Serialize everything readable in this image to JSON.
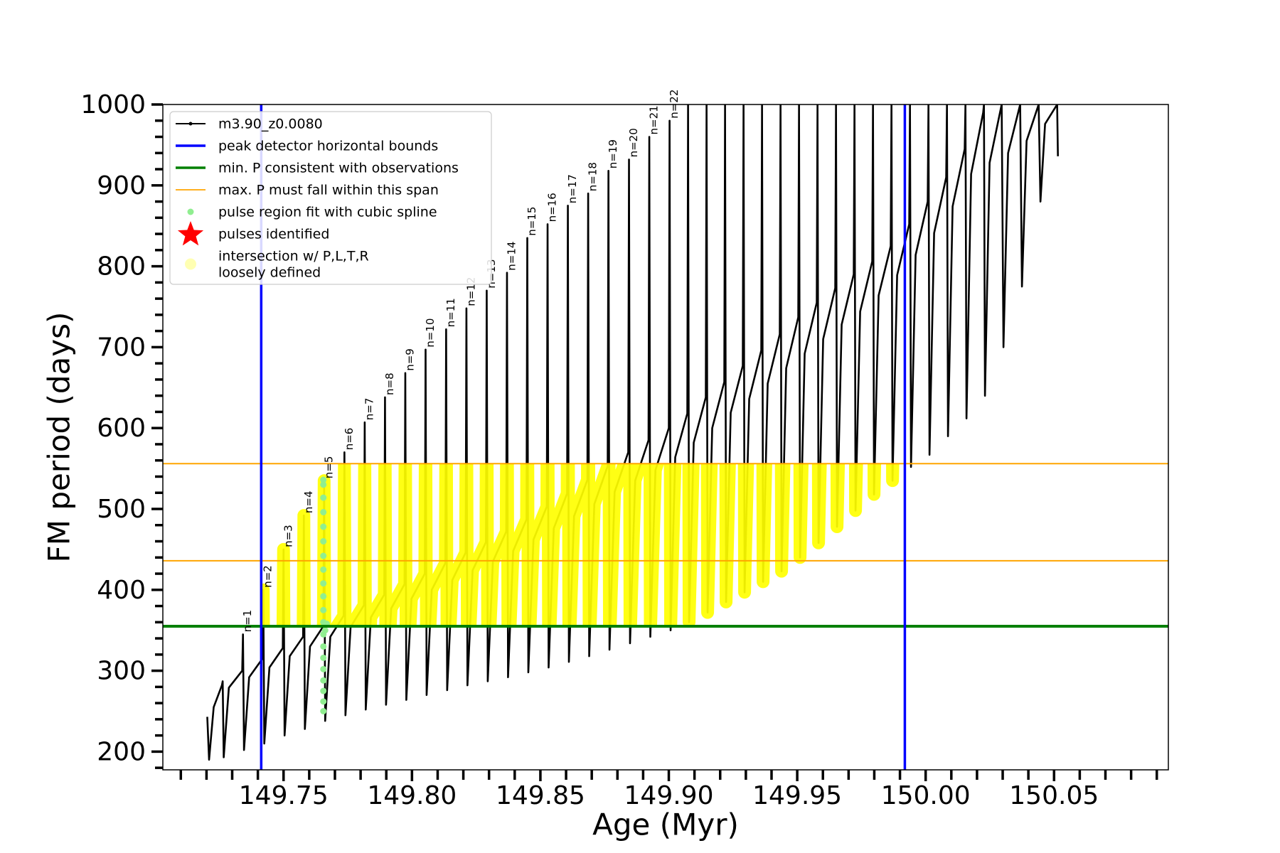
{
  "chart_data": {
    "type": "line",
    "xlabel": "Age (Myr)",
    "ylabel": "FM period (days)",
    "xlim": [
      149.703,
      150.0945
    ],
    "ylim": [
      177.5,
      1000
    ],
    "xticks": [
      149.75,
      {
        "value": 149.8,
        "label": "149.80"
      },
      149.85,
      {
        "value": 149.9,
        "label": "149.90"
      },
      149.95,
      {
        "value": 150,
        "label": "150.00"
      },
      150.05
    ],
    "xminorticks": [
      149.71,
      149.72,
      149.73,
      149.74,
      149.76,
      149.77,
      149.78,
      149.79,
      149.81,
      149.82,
      149.83,
      149.84,
      149.86,
      149.87,
      149.88,
      149.89,
      149.91,
      149.92,
      149.93,
      149.94,
      149.96,
      149.97,
      149.98,
      149.99,
      150.01,
      150.02,
      150.03,
      150.04,
      150.06,
      150.07,
      150.08,
      150.09
    ],
    "yticks": [
      200,
      300,
      400,
      500,
      600,
      700,
      800,
      900,
      1000
    ],
    "yminorticks": [
      180,
      220,
      240,
      260,
      280,
      320,
      340,
      360,
      380,
      420,
      440,
      460,
      480,
      520,
      540,
      560,
      580,
      620,
      640,
      660,
      680,
      720,
      740,
      760,
      780,
      820,
      840,
      860,
      880,
      920,
      940,
      960,
      980
    ],
    "grid": false,
    "legend": "upper left",
    "series": [
      {
        "name": "m3.90_z0.0080",
        "color": "#000000",
        "x": [
          149.7203,
          149.721,
          149.7228,
          149.726,
          149.7263,
          149.7267,
          149.7287,
          149.7339,
          149.7342,
          149.7346,
          149.7366,
          149.7418,
          149.7421,
          149.7425,
          149.7445,
          149.7497,
          149.75,
          149.7504,
          149.7524,
          149.7576,
          149.7579,
          149.7583,
          149.7603,
          149.7655,
          149.7658,
          149.7662,
          149.7682,
          149.7734,
          149.7737,
          149.7741,
          149.7761,
          149.7813,
          149.7816,
          149.782,
          149.784,
          149.7892,
          149.7895,
          149.7899,
          149.7919,
          149.7971,
          149.7974,
          149.7978,
          149.7998,
          149.805,
          149.8053,
          149.8057,
          149.8077,
          149.813,
          149.8133,
          149.8137,
          149.8157,
          149.8209,
          149.8212,
          149.8216,
          149.8236,
          149.8288,
          149.8291,
          149.8295,
          149.8315,
          149.8367,
          149.837,
          149.8374,
          149.8394,
          149.8446,
          149.8449,
          149.8453,
          149.8473,
          149.8525,
          149.8528,
          149.8532,
          149.8552,
          149.8604,
          149.8607,
          149.8611,
          149.8631,
          149.8683,
          149.8686,
          149.869,
          149.871,
          149.8762,
          149.8765,
          149.8769,
          149.8789,
          149.8842,
          149.8845,
          149.8849,
          149.8869,
          149.8921,
          149.8924,
          149.8928,
          149.8948,
          149.9,
          149.9003,
          149.9007,
          149.9025,
          149.9072,
          149.9075,
          149.9079,
          149.9097,
          149.9144,
          149.9147,
          149.9151,
          149.9169,
          149.9216,
          149.9219,
          149.9223,
          149.9241,
          149.9288,
          149.9291,
          149.9295,
          149.9313,
          149.936,
          149.9363,
          149.9367,
          149.9385,
          149.9432,
          149.9435,
          149.9439,
          149.9457,
          149.9504,
          149.9507,
          149.9511,
          149.9529,
          149.9576,
          149.9579,
          149.9583,
          149.9601,
          149.9648,
          149.9651,
          149.9655,
          149.9673,
          149.972,
          149.9723,
          149.9727,
          149.9745,
          149.9792,
          149.9795,
          149.9799,
          149.9817,
          149.9864,
          149.9867,
          149.9871,
          149.9889,
          149.9936,
          149.9939,
          149.9943,
          149.9961,
          150.0008,
          150.0011,
          150.0015,
          150.0033,
          150.008,
          150.0083,
          150.0087,
          150.0105,
          150.0152,
          150.0155,
          150.0159,
          150.0177,
          150.0224,
          150.0227,
          150.0231,
          150.0249,
          150.0296,
          150.0303,
          150.0321,
          150.0368,
          150.0375,
          150.0393,
          150.044,
          150.0447,
          150.0465,
          150.0512,
          150.0515
        ],
        "values": [
          243,
          190,
          255,
          282,
          287,
          193,
          279,
          300,
          345,
          202,
          292,
          315,
          400,
          210,
          304,
          328,
          450,
          220,
          318,
          342,
          492,
          228,
          330,
          355,
          535,
          238,
          342,
          368,
          570,
          245,
          354,
          381,
          607,
          252,
          366,
          394,
          638,
          258,
          377,
          407,
          668,
          264,
          389,
          420,
          697,
          270,
          400,
          433,
          722,
          276,
          412,
          446,
          748,
          282,
          424,
          459,
          770,
          287,
          435,
          472,
          792,
          292,
          448,
          487,
          835,
          298,
          462,
          503,
          852,
          304,
          476,
          519,
          875,
          311,
          491,
          536,
          890,
          318,
          506,
          553,
          918,
          326,
          521,
          570,
          932,
          334,
          535,
          585,
          960,
          342,
          548,
          600,
          980,
          350,
          564,
          618,
          1000,
          360,
          582,
          638,
          1000,
          372,
          600,
          657,
          1000,
          385,
          619,
          677,
          1000,
          397,
          636,
          696,
          1000,
          410,
          655,
          716,
          1000,
          423,
          674,
          737,
          1000,
          440,
          692,
          755,
          1000,
          458,
          710,
          773,
          1000,
          478,
          728,
          790,
          1000,
          498,
          744,
          806,
          1000,
          518,
          764,
          825,
          1000,
          535,
          789,
          852,
          1000,
          552,
          814,
          880,
          1000,
          567,
          841,
          910,
          1000,
          590,
          874,
          945,
          1000,
          612,
          914,
          990,
          1000,
          640,
          928,
          1000,
          700,
          940,
          1000,
          775,
          955,
          1000,
          880,
          976,
          1000,
          936
        ]
      },
      {
        "name": "peak detector horizontal bounds",
        "color": "#0000ff",
        "type": "vline",
        "x": [
          149.7413,
          149.9919
        ]
      },
      {
        "name": "min. P consistent with observations",
        "color": "#008000",
        "type": "hline",
        "values": [
          355
        ]
      },
      {
        "name": "max. P must fall within this span",
        "color": "#ffa500",
        "type": "hline",
        "values": [
          436,
          556
        ]
      },
      {
        "name": "pulse region fit with cubic spline",
        "color": "#90ee90",
        "type": "scatter",
        "x": [
          149.7655,
          149.7655,
          149.7655,
          149.7655,
          149.7655,
          149.7655,
          149.7655,
          149.7655,
          149.7655,
          149.7655,
          149.7655,
          149.7655,
          149.7655,
          149.7655,
          149.7655,
          149.7655,
          149.7655,
          149.7655,
          149.7655,
          149.7655,
          149.7662,
          149.7668
        ],
        "values": [
          250,
          262,
          275,
          288,
          302,
          316,
          330,
          345,
          360,
          375,
          392,
          408,
          425,
          442,
          460,
          478,
          496,
          514,
          530,
          536,
          350,
          358
        ]
      },
      {
        "name": "pulses identified",
        "color": "#ff0000",
        "type": "star",
        "x": [],
        "values": []
      },
      {
        "name": [
          "intersection w/ P,L,T,R",
          "loosely defined"
        ],
        "color": "#ffff00",
        "type": "intersection"
      }
    ],
    "annotations": [
      {
        "text": "n=1",
        "x": 149.7342,
        "y": 345
      },
      {
        "text": "n=2",
        "x": 149.7421,
        "y": 400
      },
      {
        "text": "n=3",
        "x": 149.75,
        "y": 450
      },
      {
        "text": "n=4",
        "x": 149.7579,
        "y": 492
      },
      {
        "text": "n=5",
        "x": 149.7658,
        "y": 535
      },
      {
        "text": "n=6",
        "x": 149.7737,
        "y": 570
      },
      {
        "text": "n=7",
        "x": 149.7816,
        "y": 607
      },
      {
        "text": "n=8",
        "x": 149.7895,
        "y": 638
      },
      {
        "text": "n=9",
        "x": 149.7974,
        "y": 668
      },
      {
        "text": "n=10",
        "x": 149.8053,
        "y": 697
      },
      {
        "text": "n=11",
        "x": 149.8133,
        "y": 722
      },
      {
        "text": "n=12",
        "x": 149.8212,
        "y": 748
      },
      {
        "text": "n=13",
        "x": 149.8291,
        "y": 770
      },
      {
        "text": "n=14",
        "x": 149.837,
        "y": 792
      },
      {
        "text": "n=15",
        "x": 149.8449,
        "y": 835
      },
      {
        "text": "n=16",
        "x": 149.8528,
        "y": 852
      },
      {
        "text": "n=17",
        "x": 149.8607,
        "y": 875
      },
      {
        "text": "n=18",
        "x": 149.8686,
        "y": 890
      },
      {
        "text": "n=19",
        "x": 149.8765,
        "y": 918
      },
      {
        "text": "n=20",
        "x": 149.8845,
        "y": 932
      },
      {
        "text": "n=21",
        "x": 149.8924,
        "y": 960
      },
      {
        "text": "n=22",
        "x": 149.9003,
        "y": 980
      }
    ]
  }
}
